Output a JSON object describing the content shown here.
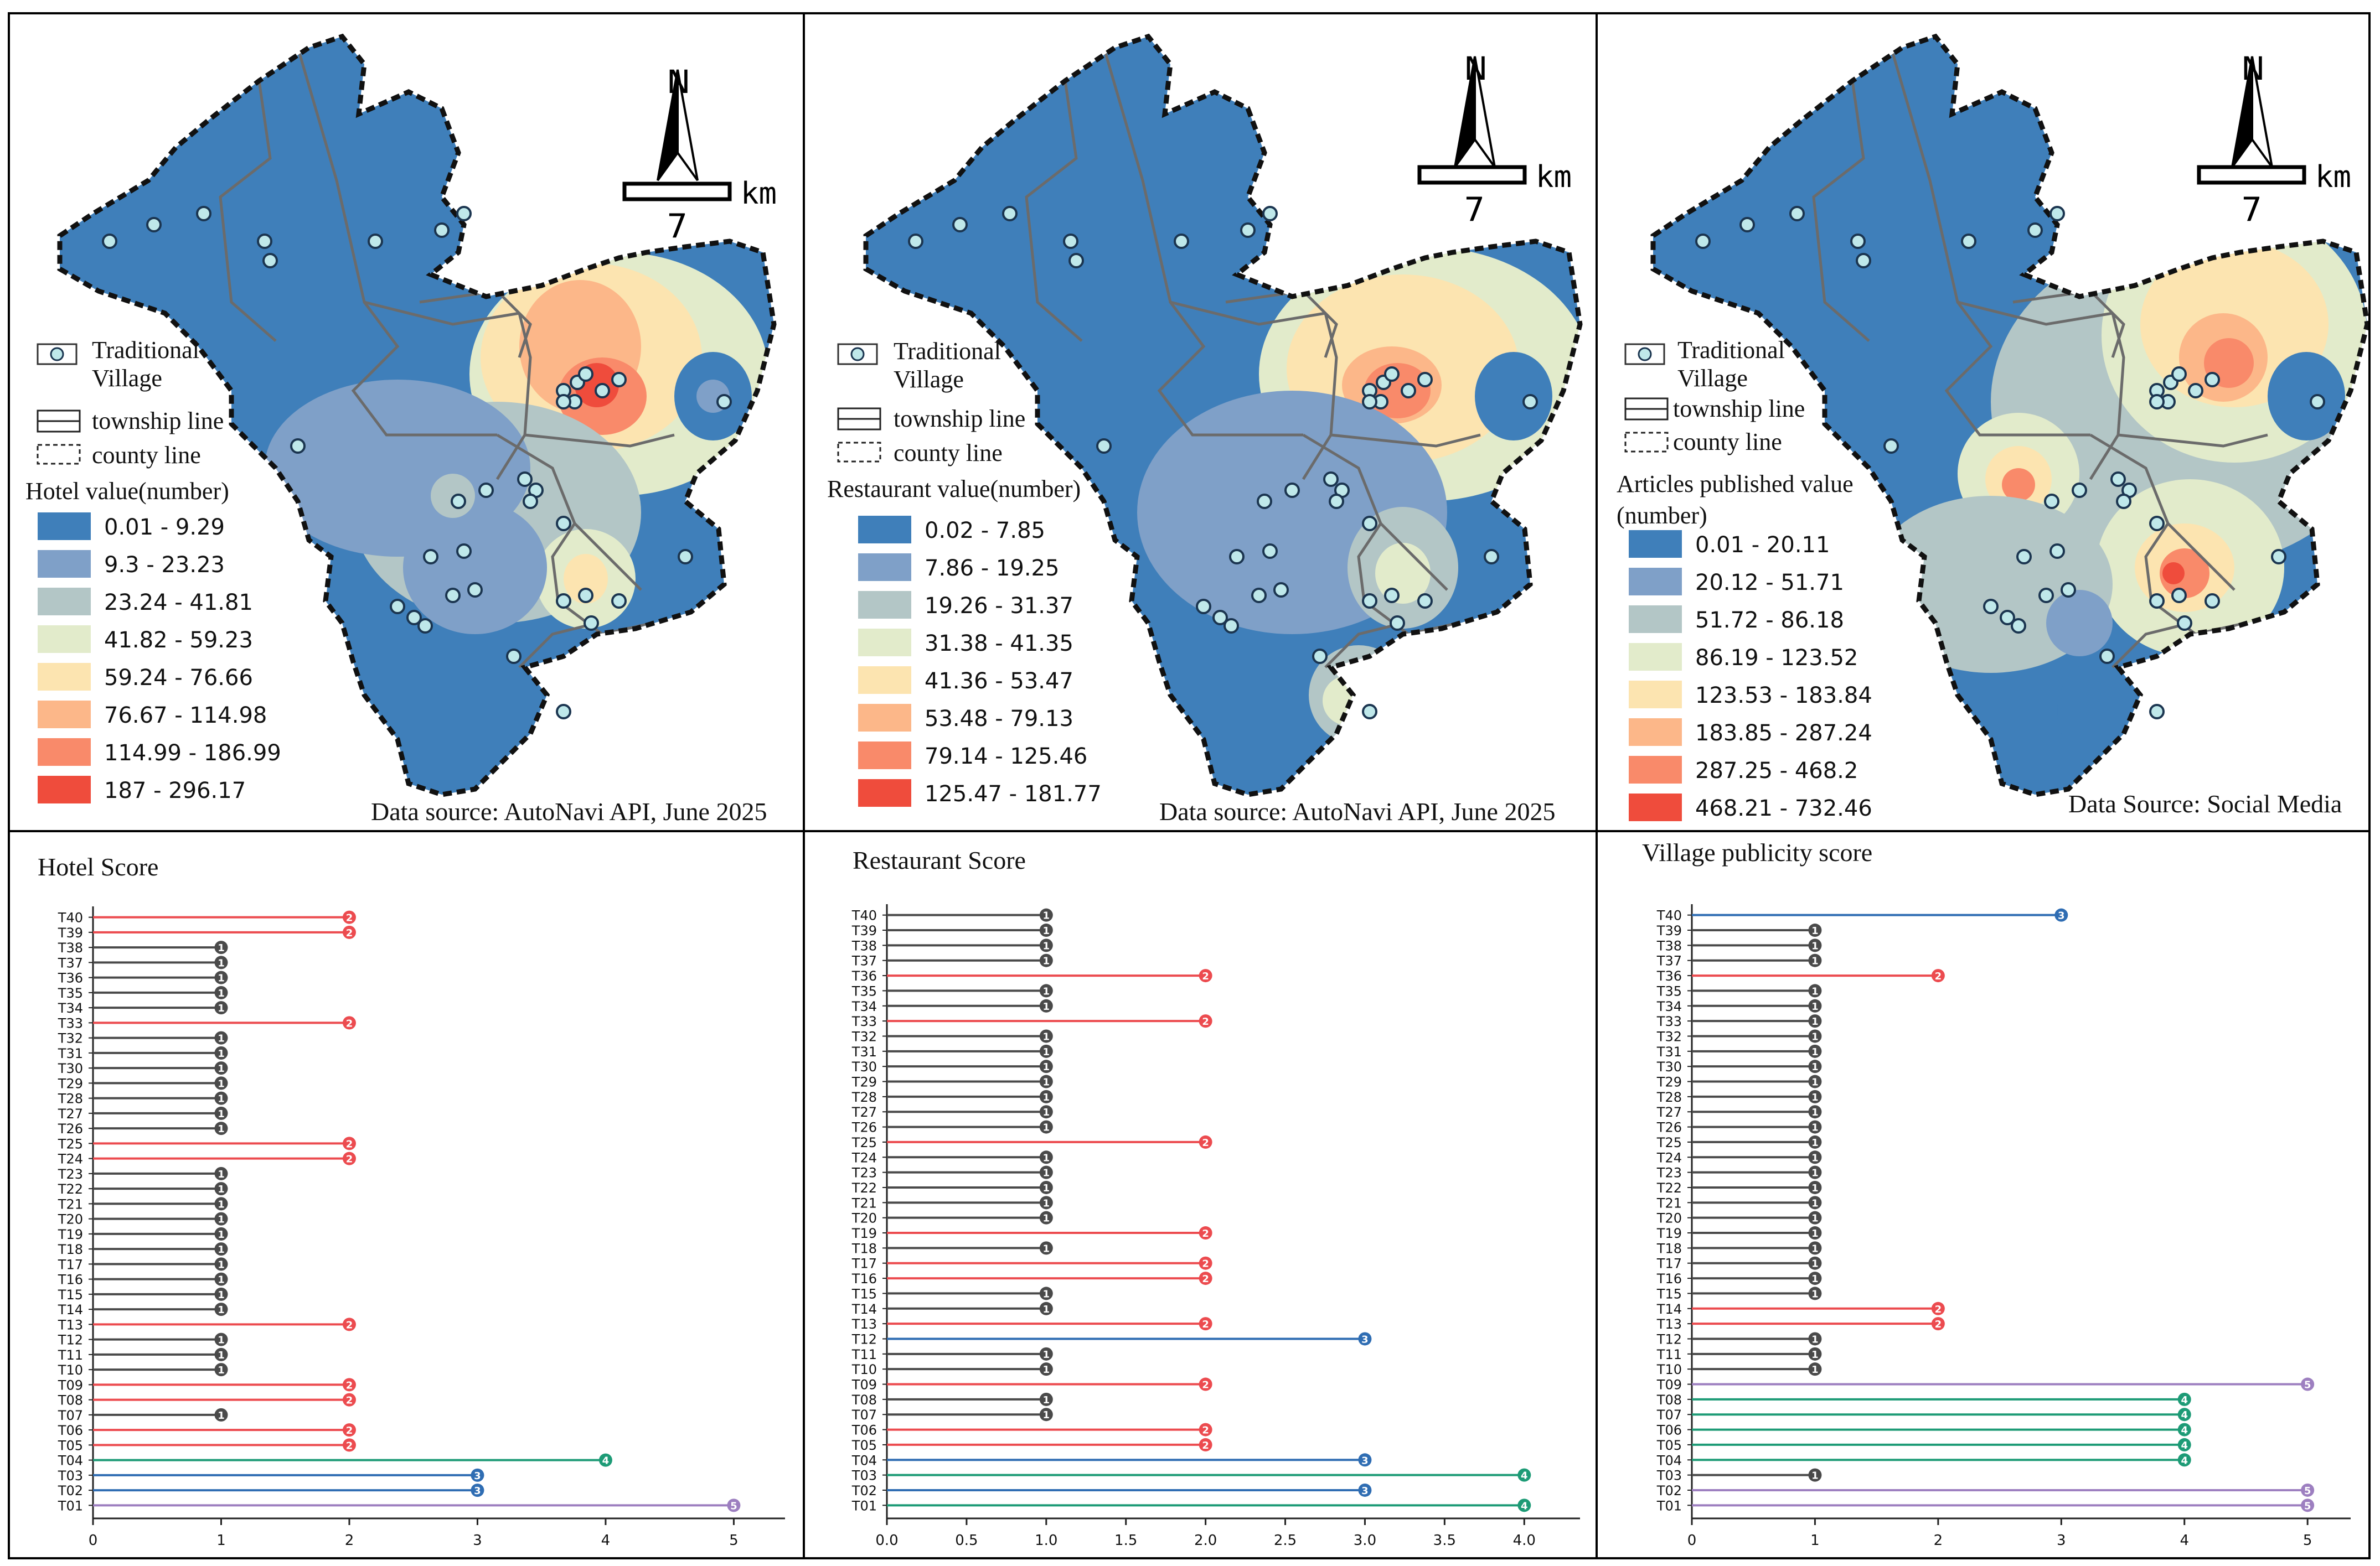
{
  "maps": [
    {
      "legend_title": "Hotel value(number)",
      "source": "Data source: AutoNavi API, June 2025",
      "scale": {
        "north": "N",
        "unit": "km",
        "value": "7"
      },
      "legend": {
        "village": "Traditional Village",
        "township": "township line",
        "county": "county line"
      },
      "classes": [
        {
          "label": "0.01 - 9.29",
          "color": "#3f7fba"
        },
        {
          "label": "9.3 - 23.23",
          "color": "#7fa0c8"
        },
        {
          "label": "23.24 - 41.81",
          "color": "#b3c6c6"
        },
        {
          "label": "41.82 - 59.23",
          "color": "#e2ebcb"
        },
        {
          "label": "59.24 - 76.66",
          "color": "#fce4b0"
        },
        {
          "label": "76.67 - 114.98",
          "color": "#fcb789"
        },
        {
          "label": "114.99 - 186.99",
          "color": "#f98a6a"
        },
        {
          "label": "187 - 296.17",
          "color": "#ef4c3c"
        }
      ]
    },
    {
      "legend_title": "Restaurant value(number)",
      "source": "Data source: AutoNavi API, June 2025",
      "scale": {
        "north": "N",
        "unit": "km",
        "value": "7"
      },
      "legend": {
        "village": "Traditional Village",
        "township": "township line",
        "county": "county line"
      },
      "classes": [
        {
          "label": "0.02 - 7.85",
          "color": "#3f7fba"
        },
        {
          "label": "7.86 - 19.25",
          "color": "#7fa0c8"
        },
        {
          "label": "19.26 - 31.37",
          "color": "#b3c6c6"
        },
        {
          "label": "31.38 - 41.35",
          "color": "#e2ebcb"
        },
        {
          "label": "41.36 - 53.47",
          "color": "#fce4b0"
        },
        {
          "label": "53.48 - 79.13",
          "color": "#fcb789"
        },
        {
          "label": "79.14 - 125.46",
          "color": "#f98a6a"
        },
        {
          "label": "125.47 - 181.77",
          "color": "#ef4c3c"
        }
      ]
    },
    {
      "legend_title": "Articles published value (number)",
      "source": "Data Source: Social Media",
      "scale": {
        "north": "N",
        "unit": "km",
        "value": "7"
      },
      "legend": {
        "village": "Traditional Village",
        "township": "township line",
        "county": "county line"
      },
      "classes": [
        {
          "label": "0.01 - 20.11",
          "color": "#3f7fba"
        },
        {
          "label": "20.12 - 51.71",
          "color": "#7fa0c8"
        },
        {
          "label": "51.72 - 86.18",
          "color": "#b3c6c6"
        },
        {
          "label": "86.19 - 123.52",
          "color": "#e2ebcb"
        },
        {
          "label": "123.53 - 183.84",
          "color": "#fce4b0"
        },
        {
          "label": "183.85 - 287.24",
          "color": "#fcb789"
        },
        {
          "label": "287.25 - 468.2",
          "color": "#f98a6a"
        },
        {
          "label": "468.21 - 732.46",
          "color": "#ef4c3c"
        }
      ]
    }
  ],
  "score_colors": {
    "1": "#4a4a4a",
    "2": "#ec4b4f",
    "3": "#2f6db3",
    "4": "#1d9b76",
    "5": "#9d7fc0"
  },
  "chart_data": [
    {
      "type": "lollipop",
      "title": "Hotel Score",
      "orientation": "horizontal",
      "categories": [
        "T01",
        "T02",
        "T03",
        "T04",
        "T05",
        "T06",
        "T07",
        "T08",
        "T09",
        "T10",
        "T11",
        "T12",
        "T13",
        "T14",
        "T15",
        "T16",
        "T17",
        "T18",
        "T19",
        "T20",
        "T21",
        "T22",
        "T23",
        "T24",
        "T25",
        "T26",
        "T27",
        "T28",
        "T29",
        "T30",
        "T31",
        "T32",
        "T33",
        "T34",
        "T35",
        "T36",
        "T37",
        "T38",
        "T39",
        "T40"
      ],
      "values": [
        5,
        3,
        3,
        4,
        2,
        2,
        1,
        2,
        2,
        1,
        1,
        1,
        2,
        1,
        1,
        1,
        1,
        1,
        1,
        1,
        1,
        1,
        1,
        2,
        2,
        1,
        1,
        1,
        1,
        1,
        1,
        1,
        2,
        1,
        1,
        1,
        1,
        1,
        2,
        2
      ],
      "xlim": [
        0,
        5.4
      ],
      "xticks": [
        "0",
        "1",
        "2",
        "3",
        "4",
        "5"
      ],
      "xtick_values": [
        0,
        1,
        2,
        3,
        4,
        5
      ]
    },
    {
      "type": "lollipop",
      "title": "Restaurant Score",
      "orientation": "horizontal",
      "categories": [
        "T01",
        "T02",
        "T03",
        "T04",
        "T05",
        "T06",
        "T07",
        "T08",
        "T09",
        "T10",
        "T11",
        "T12",
        "T13",
        "T14",
        "T15",
        "T16",
        "T17",
        "T18",
        "T19",
        "T20",
        "T21",
        "T22",
        "T23",
        "T24",
        "T25",
        "T26",
        "T27",
        "T28",
        "T29",
        "T30",
        "T31",
        "T32",
        "T33",
        "T34",
        "T35",
        "T36",
        "T37",
        "T38",
        "T39",
        "T40"
      ],
      "values": [
        4,
        3,
        4,
        3,
        2,
        2,
        1,
        1,
        2,
        1,
        1,
        3,
        2,
        1,
        1,
        2,
        2,
        1,
        2,
        1,
        1,
        1,
        1,
        1,
        2,
        1,
        1,
        1,
        1,
        1,
        1,
        1,
        2,
        1,
        1,
        2,
        1,
        1,
        1,
        1
      ],
      "xlim": [
        0,
        4.35
      ],
      "xticks": [
        "0.0",
        "0.5",
        "1.0",
        "1.5",
        "2.0",
        "2.5",
        "3.0",
        "3.5",
        "4.0"
      ],
      "xtick_values": [
        0,
        0.5,
        1,
        1.5,
        2,
        2.5,
        3,
        3.5,
        4
      ]
    },
    {
      "type": "lollipop",
      "title": "Village publicity score",
      "orientation": "horizontal",
      "categories": [
        "T01",
        "T02",
        "T03",
        "T04",
        "T05",
        "T06",
        "T07",
        "T08",
        "T09",
        "T10",
        "T11",
        "T12",
        "T13",
        "T14",
        "T15",
        "T16",
        "T17",
        "T18",
        "T19",
        "T20",
        "T21",
        "T22",
        "T23",
        "T24",
        "T25",
        "T26",
        "T27",
        "T28",
        "T29",
        "T30",
        "T31",
        "T32",
        "T33",
        "T34",
        "T35",
        "T36",
        "T37",
        "T38",
        "T39",
        "T40"
      ],
      "values": [
        5,
        5,
        1,
        4,
        4,
        4,
        4,
        4,
        5,
        1,
        1,
        1,
        2,
        2,
        1,
        1,
        1,
        1,
        1,
        1,
        1,
        1,
        1,
        1,
        1,
        1,
        1,
        1,
        1,
        1,
        1,
        1,
        1,
        1,
        1,
        2,
        1,
        1,
        1,
        3
      ],
      "xlim": [
        0,
        5.35
      ],
      "xticks": [
        "0",
        "1",
        "2",
        "3",
        "4",
        "5"
      ],
      "xtick_values": [
        0,
        1,
        2,
        3,
        4,
        5
      ]
    }
  ]
}
